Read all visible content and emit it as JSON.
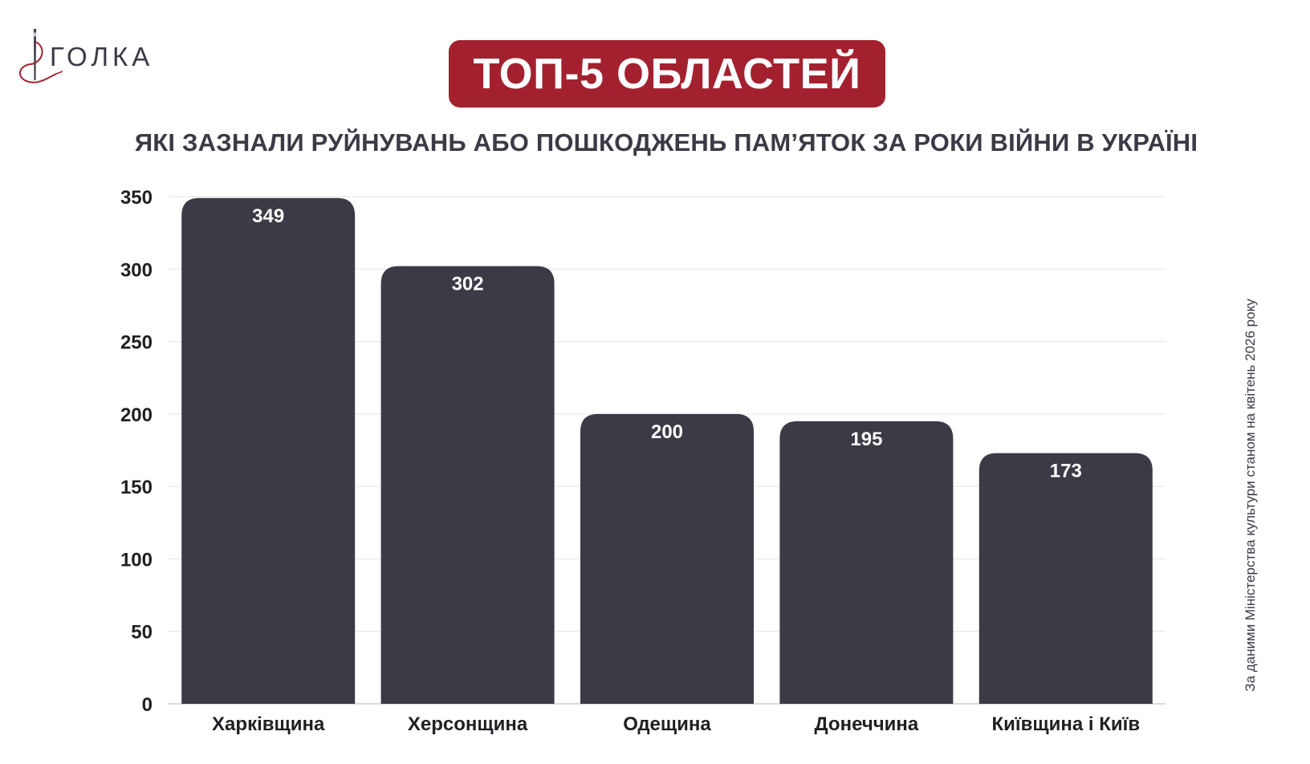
{
  "brand": {
    "logo_text": "ГОЛКА",
    "logo_icon": "needle-thread-icon",
    "accent": "#a3212f",
    "dark": "#3b3a45"
  },
  "header": {
    "title": "ТОП-5 ОБЛАСТЕЙ",
    "subtitle": "ЯКІ ЗАЗНАЛИ РУЙНУВАНЬ АБО ПОШКОДЖЕНЬ ПАМ’ЯТОК ЗА РОКИ ВІЙНИ В УКРАЇНІ"
  },
  "source_note": "За даними Міністерства культури станом на квітень 2026 року",
  "chart_data": {
    "type": "bar",
    "categories": [
      "Харківщина",
      "Херсонщина",
      "Одещина",
      "Донеччина",
      "Київщина і Київ"
    ],
    "values": [
      349,
      302,
      200,
      195,
      173
    ],
    "data_labels": [
      "349",
      "302",
      "200",
      "195",
      "173"
    ],
    "ylim": [
      0,
      350
    ],
    "yticks": [
      0,
      50,
      100,
      150,
      200,
      250,
      300,
      350
    ],
    "grid": true,
    "bar_color": "#3b3a45",
    "label_color": "#ffffff"
  }
}
